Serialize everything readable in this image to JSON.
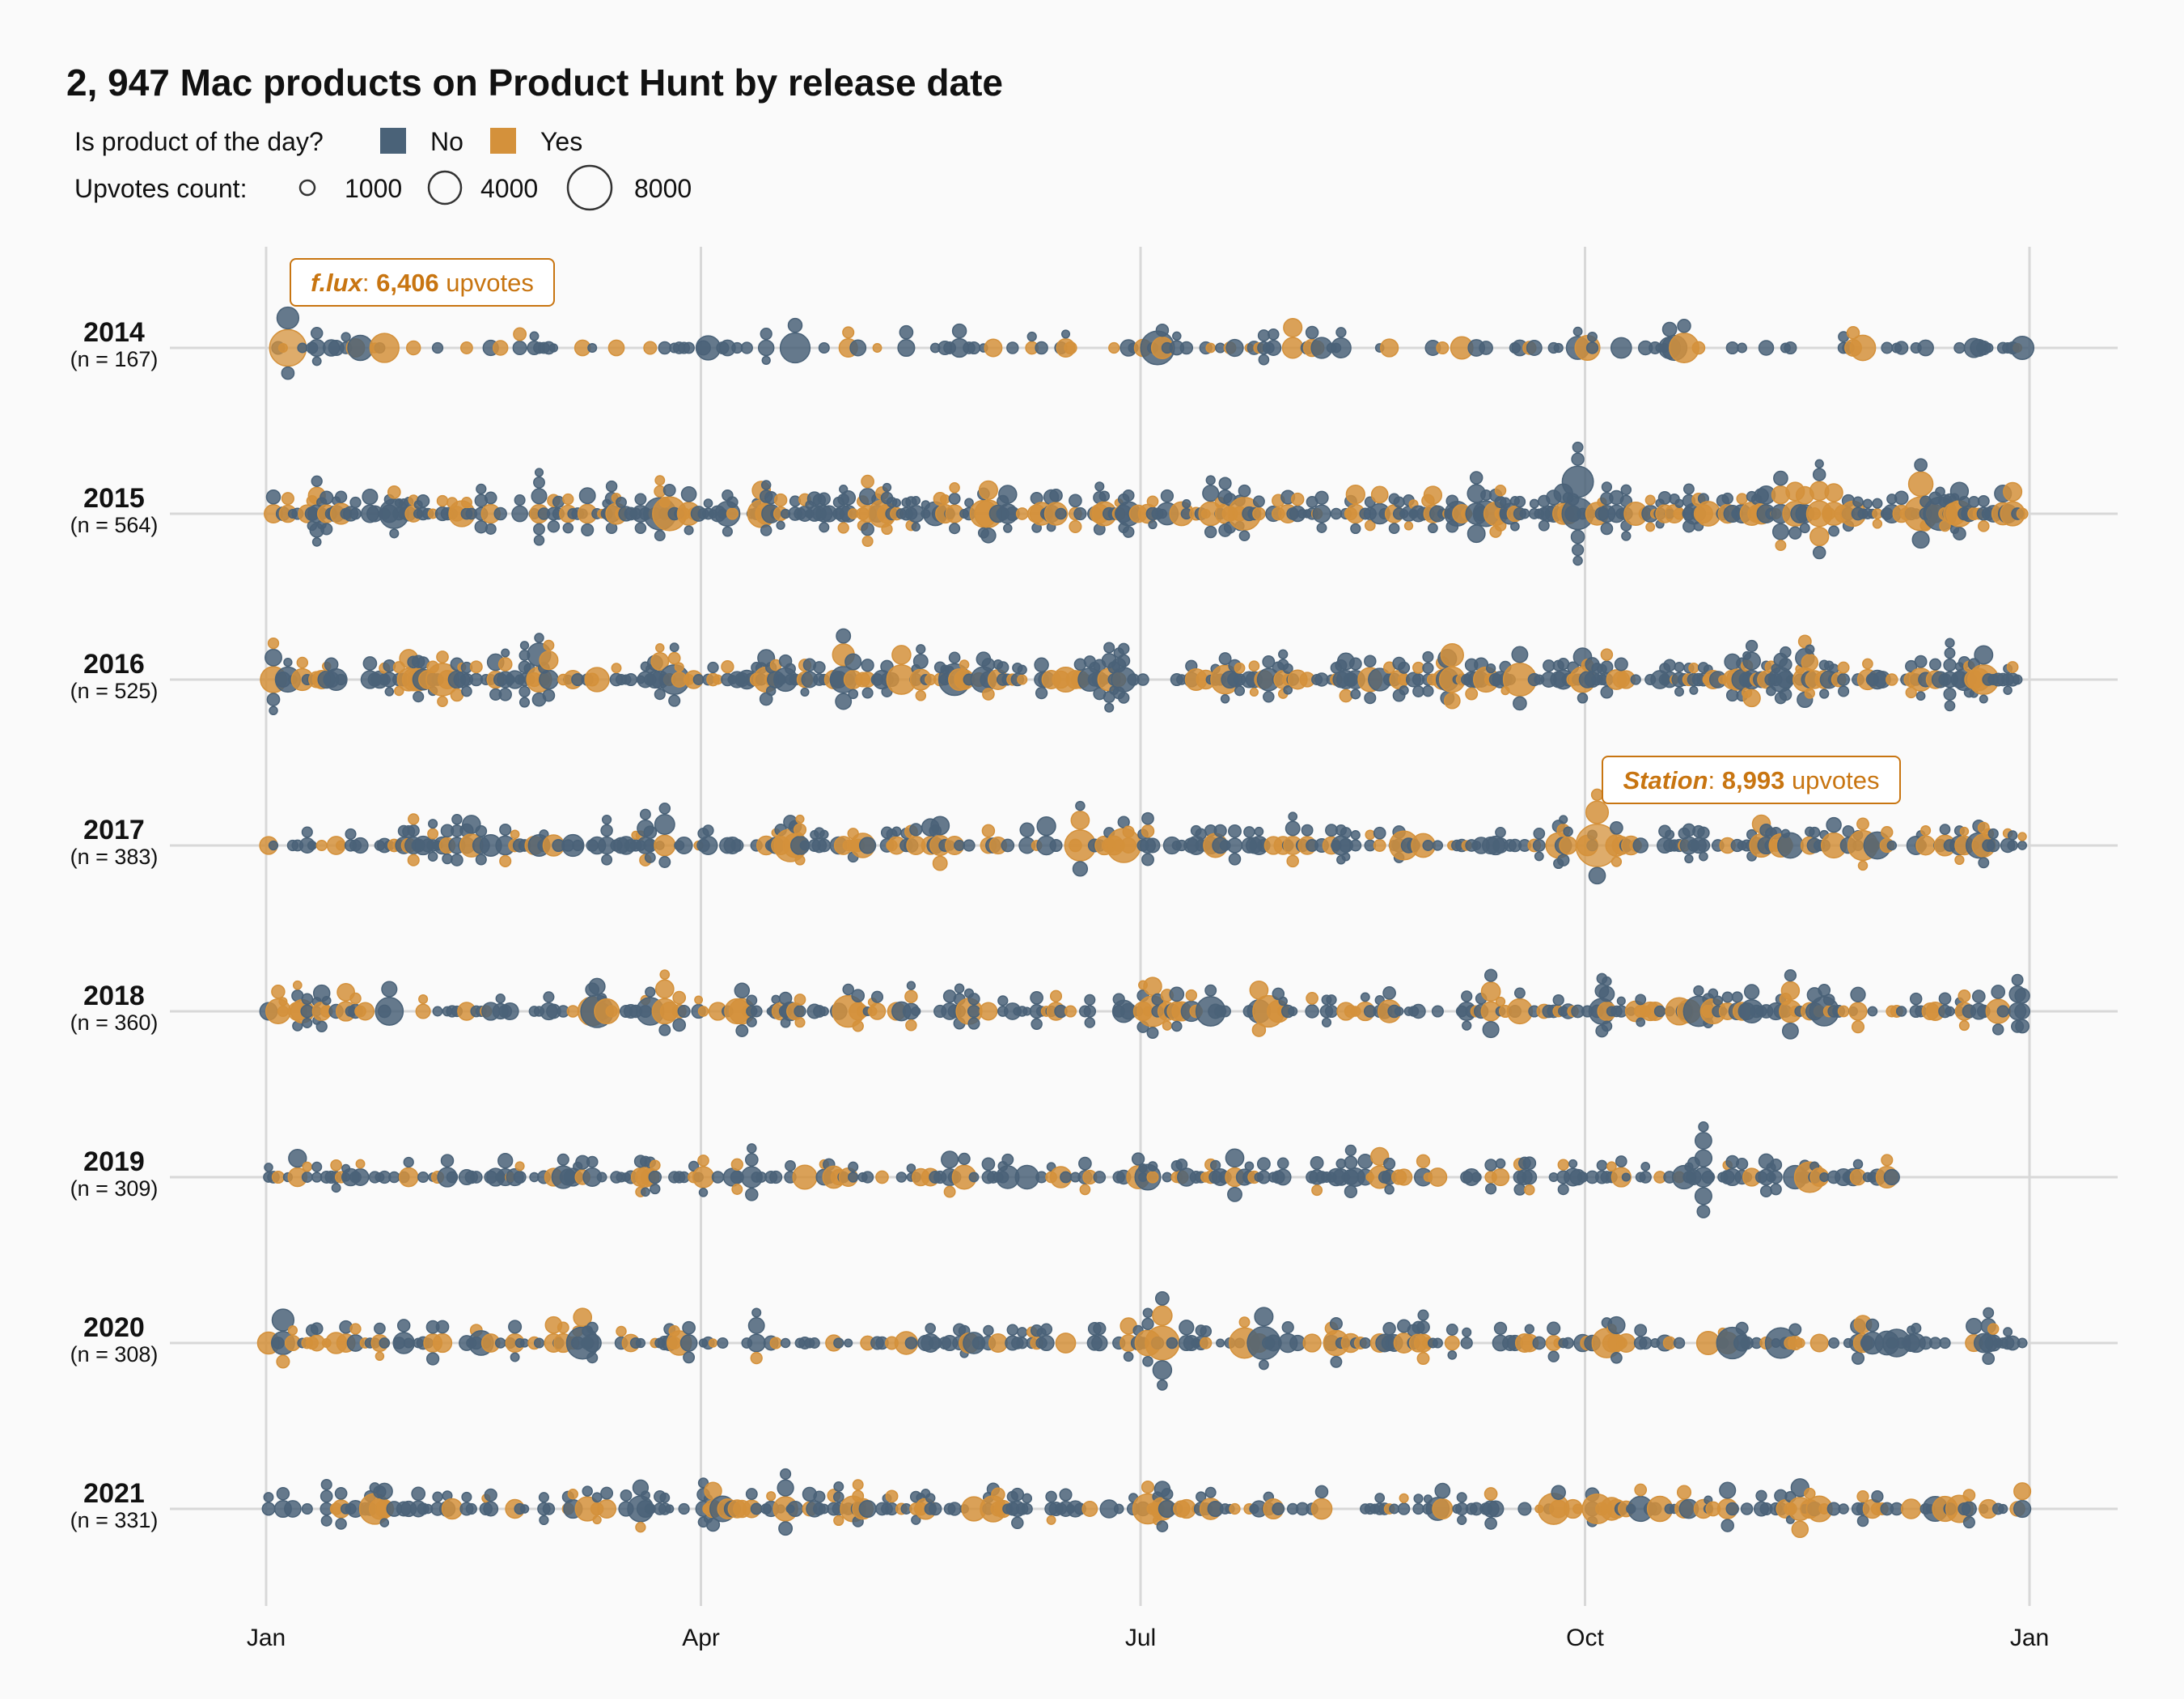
{
  "chart_data": {
    "type": "scatter",
    "subtype": "beeswarm-timeline",
    "title": "2, 947 Mac products on Product Hunt by release date",
    "legend": {
      "color_title": "Is product of the day?",
      "color_entries": [
        {
          "label": "No",
          "color": "#4a6278"
        },
        {
          "label": "Yes",
          "color": "#d4913b"
        }
      ],
      "size_title": "Upvotes count:",
      "size_entries": [
        {
          "label": "1000",
          "value": 1000
        },
        {
          "label": "4000",
          "value": 4000
        },
        {
          "label": "8000",
          "value": 8000
        }
      ],
      "placement": "top-left"
    },
    "x_axis": {
      "type": "day-of-year",
      "ticks": [
        {
          "label": "Jan",
          "month": 1
        },
        {
          "label": "Apr",
          "month": 4
        },
        {
          "label": "Jul",
          "month": 7
        },
        {
          "label": "Oct",
          "month": 10
        },
        {
          "label": "Jan",
          "month": 13
        }
      ],
      "grid": true
    },
    "series": [
      {
        "year": "2014",
        "n_label": "(n = 167)",
        "count": 167
      },
      {
        "year": "2015",
        "n_label": "(n = 564)",
        "count": 564
      },
      {
        "year": "2016",
        "n_label": "(n = 525)",
        "count": 525
      },
      {
        "year": "2017",
        "n_label": "(n = 383)",
        "count": 383
      },
      {
        "year": "2018",
        "n_label": "(n = 360)",
        "count": 360
      },
      {
        "year": "2019",
        "n_label": "(n = 309)",
        "count": 309
      },
      {
        "year": "2020",
        "n_label": "(n = 308)",
        "count": 308
      },
      {
        "year": "2021",
        "n_label": "(n = 331)",
        "count": 331
      }
    ],
    "annotations": [
      {
        "year": "2014",
        "date": "2014-01-05",
        "product": "f.lux",
        "upvotes_text": "6,406",
        "suffix": " upvotes",
        "upvotes": 6406
      },
      {
        "year": "2017",
        "date": "2017-10-03",
        "product": "Station",
        "upvotes_text": "8,993",
        "suffix": " upvotes",
        "upvotes": 8993
      }
    ],
    "colors": {
      "no": "#4a6278",
      "yes": "#d4913b",
      "annotation": "#c87511",
      "grid": "#d8d8d8"
    }
  }
}
